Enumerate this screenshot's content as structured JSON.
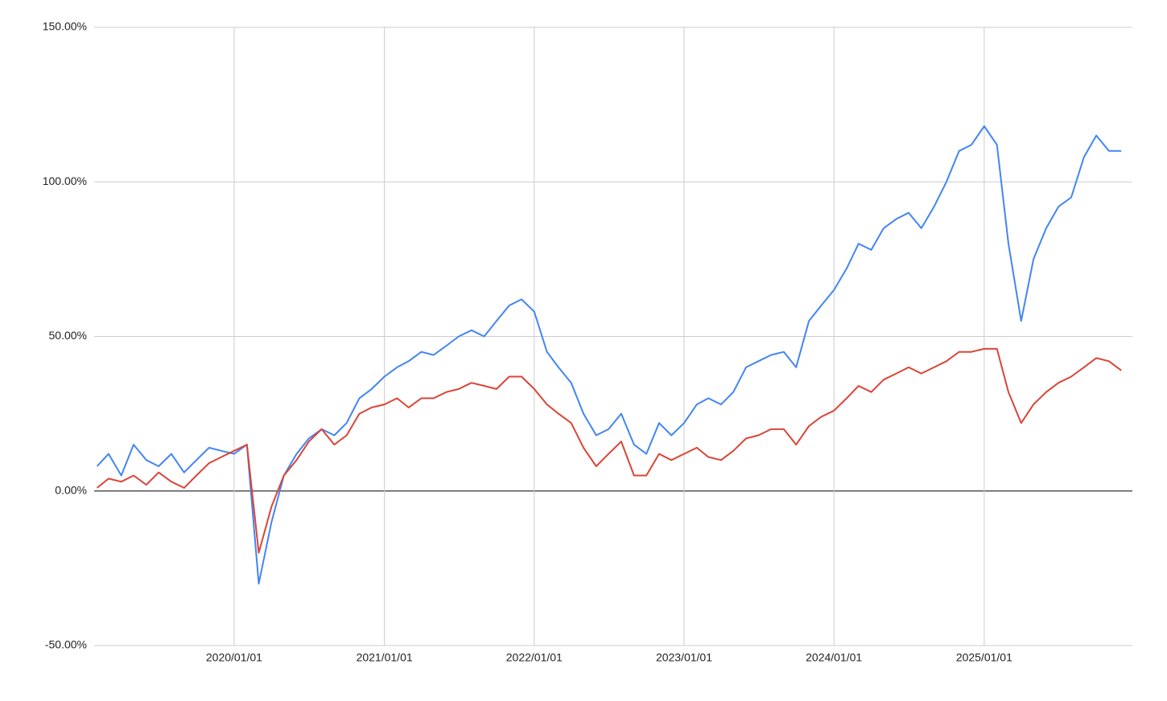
{
  "chart_data": {
    "type": "line",
    "x": [
      "2019/02/01",
      "2019/03/01",
      "2019/04/01",
      "2019/05/01",
      "2019/06/01",
      "2019/07/01",
      "2019/08/01",
      "2019/09/01",
      "2019/10/01",
      "2019/11/01",
      "2019/12/01",
      "2020/01/01",
      "2020/02/01",
      "2020/03/01",
      "2020/04/01",
      "2020/05/01",
      "2020/06/01",
      "2020/07/01",
      "2020/08/01",
      "2020/09/01",
      "2020/10/01",
      "2020/11/01",
      "2020/12/01",
      "2021/01/01",
      "2021/02/01",
      "2021/03/01",
      "2021/04/01",
      "2021/05/01",
      "2021/06/01",
      "2021/07/01",
      "2021/08/01",
      "2021/09/01",
      "2021/10/01",
      "2021/11/01",
      "2021/12/01",
      "2022/01/01",
      "2022/02/01",
      "2022/03/01",
      "2022/04/01",
      "2022/05/01",
      "2022/06/01",
      "2022/07/01",
      "2022/08/01",
      "2022/09/01",
      "2022/10/01",
      "2022/11/01",
      "2022/12/01",
      "2023/01/01",
      "2023/02/01",
      "2023/03/01",
      "2023/04/01",
      "2023/05/01",
      "2023/06/01",
      "2023/07/01",
      "2023/08/01",
      "2023/09/01",
      "2023/10/01",
      "2023/11/01",
      "2023/12/01",
      "2024/01/01",
      "2024/02/01",
      "2024/03/01",
      "2024/04/01",
      "2024/05/01",
      "2024/06/01",
      "2024/07/01",
      "2024/08/01",
      "2024/09/01",
      "2024/10/01",
      "2024/11/01",
      "2024/12/01",
      "2025/01/01",
      "2025/02/01",
      "2025/03/01",
      "2025/04/01",
      "2025/05/01",
      "2025/06/01",
      "2025/07/01",
      "2025/08/01",
      "2025/09/01",
      "2025/10/01",
      "2025/11/01",
      "2025/12/01"
    ],
    "series": [
      {
        "color": "#4285f4",
        "values": [
          8,
          12,
          5,
          15,
          10,
          8,
          12,
          6,
          10,
          14,
          13,
          12,
          15,
          -30,
          -10,
          5,
          12,
          17,
          20,
          18,
          22,
          30,
          33,
          37,
          40,
          42,
          45,
          44,
          47,
          50,
          52,
          50,
          55,
          60,
          62,
          58,
          45,
          40,
          35,
          25,
          18,
          20,
          25,
          15,
          12,
          22,
          18,
          22,
          28,
          30,
          28,
          32,
          40,
          42,
          44,
          45,
          40,
          55,
          60,
          65,
          72,
          80,
          78,
          85,
          88,
          90,
          85,
          92,
          100,
          110,
          112,
          118,
          112,
          80,
          55,
          75,
          85,
          92,
          95,
          108,
          115,
          110,
          110
        ]
      },
      {
        "color": "#db4437",
        "values": [
          1,
          4,
          3,
          5,
          2,
          6,
          3,
          1,
          5,
          9,
          11,
          13,
          15,
          -20,
          -5,
          5,
          10,
          16,
          20,
          15,
          18,
          25,
          27,
          28,
          30,
          27,
          30,
          30,
          32,
          33,
          35,
          34,
          33,
          37,
          37,
          33,
          28,
          25,
          22,
          14,
          8,
          12,
          16,
          5,
          5,
          12,
          10,
          12,
          14,
          11,
          10,
          13,
          17,
          18,
          20,
          20,
          15,
          21,
          24,
          26,
          30,
          34,
          32,
          36,
          38,
          40,
          38,
          40,
          42,
          45,
          45,
          46,
          46,
          32,
          22,
          28,
          32,
          35,
          37,
          40,
          43,
          42,
          39
        ]
      }
    ],
    "xlim": [
      "2019/01/25",
      "2025/12/28"
    ],
    "xticks": [
      "2020/01/01",
      "2021/01/01",
      "2022/01/01",
      "2023/01/01",
      "2024/01/01",
      "2025/01/01"
    ],
    "ylim": [
      -50,
      150
    ],
    "yticks": [
      {
        "value": -50,
        "label": "-50.00%"
      },
      {
        "value": 0,
        "label": "0.00%"
      },
      {
        "value": 50,
        "label": "50.00%"
      },
      {
        "value": 100,
        "label": "100.00%"
      },
      {
        "value": 150,
        "label": "150.00%"
      }
    ],
    "grid": true
  }
}
